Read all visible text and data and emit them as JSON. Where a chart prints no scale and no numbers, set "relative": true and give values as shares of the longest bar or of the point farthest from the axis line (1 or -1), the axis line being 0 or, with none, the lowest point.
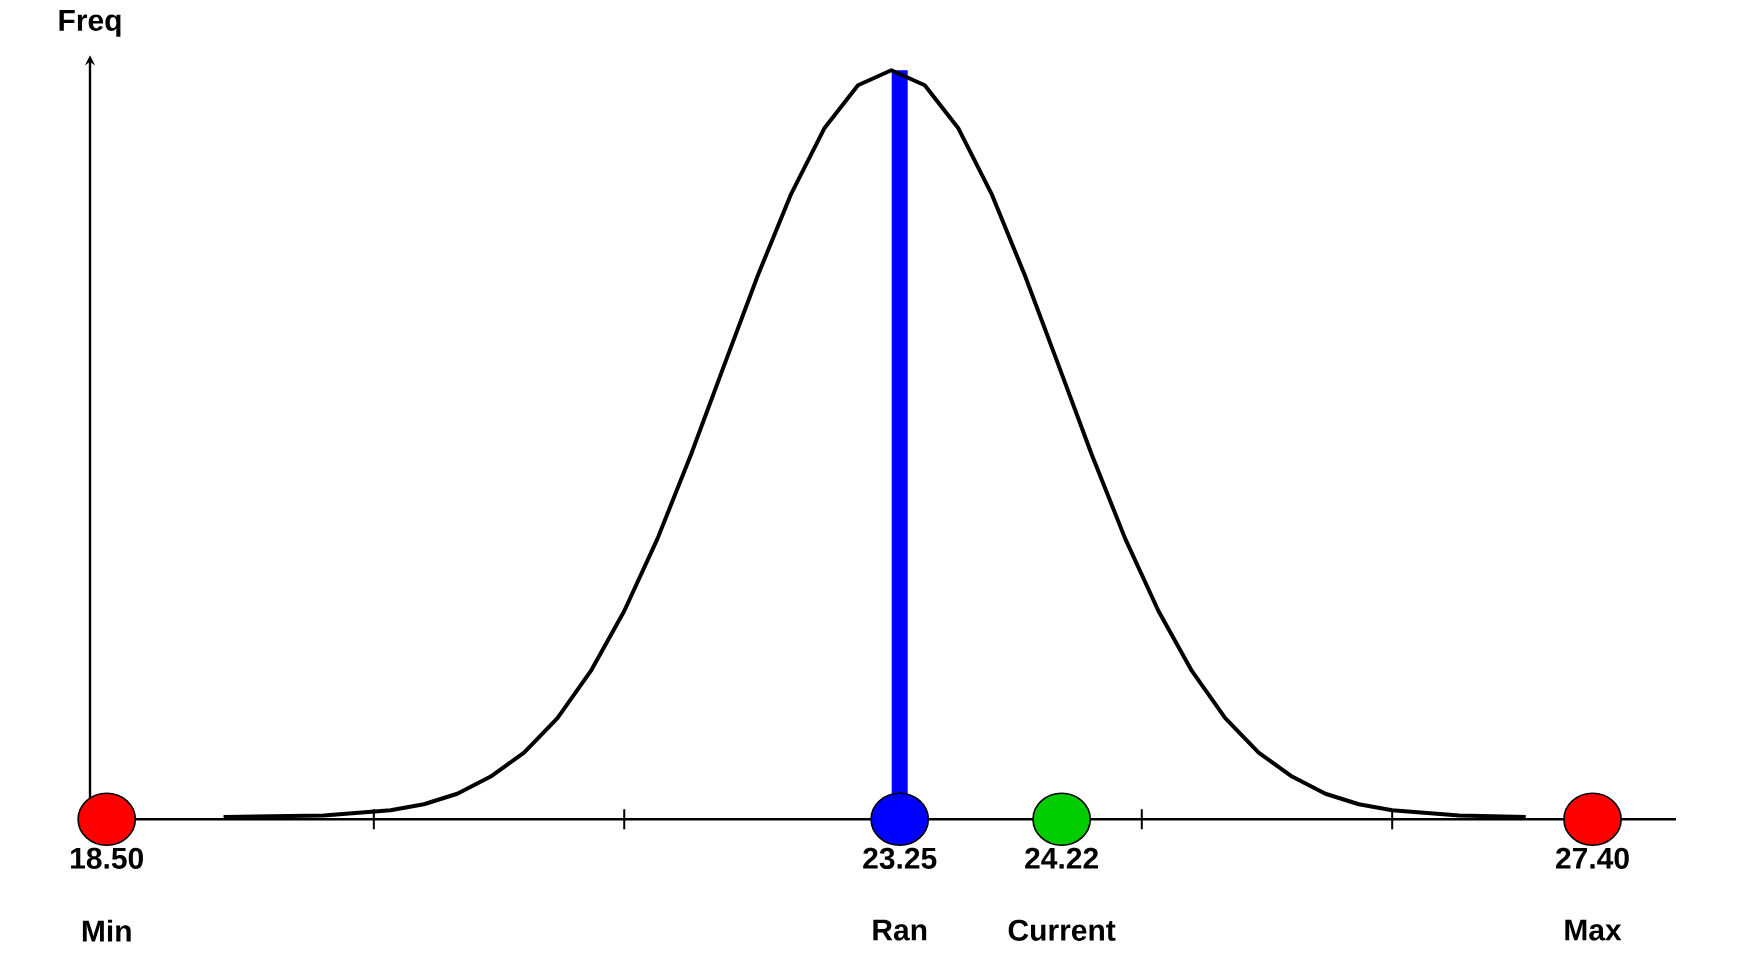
{
  "chart_data": {
    "type": "line",
    "ylabel": "Freq",
    "relative": true,
    "xlim": [
      18.4,
      27.9
    ],
    "xticks": [
      {
        "value": 18.5,
        "label": "18.50"
      },
      {
        "value": 20.1,
        "label": null
      },
      {
        "value": 21.6,
        "label": null
      },
      {
        "value": 23.25,
        "label": "23.25"
      },
      {
        "value": 24.22,
        "label": "24.22"
      },
      {
        "value": 24.7,
        "label": null
      },
      {
        "value": 26.2,
        "label": null
      },
      {
        "value": 27.4,
        "label": "27.40"
      }
    ],
    "series": [
      {
        "color": "#000000",
        "line_style": "solid",
        "x": [
          19.2,
          19.8,
          20.2,
          20.4,
          20.6,
          20.8,
          21.0,
          21.2,
          21.4,
          21.6,
          21.8,
          22.0,
          22.2,
          22.4,
          22.6,
          22.8,
          23.0,
          23.2,
          23.4,
          23.6,
          23.8,
          24.0,
          24.2,
          24.4,
          24.6,
          24.8,
          25.0,
          25.2,
          25.4,
          25.6,
          25.8,
          26.0,
          26.2,
          26.6,
          27.0
        ],
        "values": [
          0.003,
          0.005,
          0.012,
          0.02,
          0.034,
          0.057,
          0.089,
          0.135,
          0.198,
          0.278,
          0.375,
          0.487,
          0.607,
          0.726,
          0.835,
          0.923,
          0.98,
          1,
          0.98,
          0.923,
          0.835,
          0.726,
          0.607,
          0.487,
          0.375,
          0.278,
          0.198,
          0.135,
          0.089,
          0.057,
          0.034,
          0.02,
          0.012,
          0.005,
          0.003
        ]
      },
      {
        "type": "scatter",
        "marker": "circle",
        "x": [
          18.5,
          23.25,
          24.22,
          27.4
        ],
        "values": [
          0,
          0,
          0,
          0
        ],
        "colors": [
          "#ff0000",
          "#0000ff",
          "#00cc00",
          "#ff0000"
        ]
      }
    ],
    "ref_lines": [
      {
        "axis": "x",
        "value": 23.25,
        "color": "#0000ff"
      }
    ],
    "annotations": [
      "Min",
      "Ran",
      "Current",
      "Max"
    ]
  }
}
